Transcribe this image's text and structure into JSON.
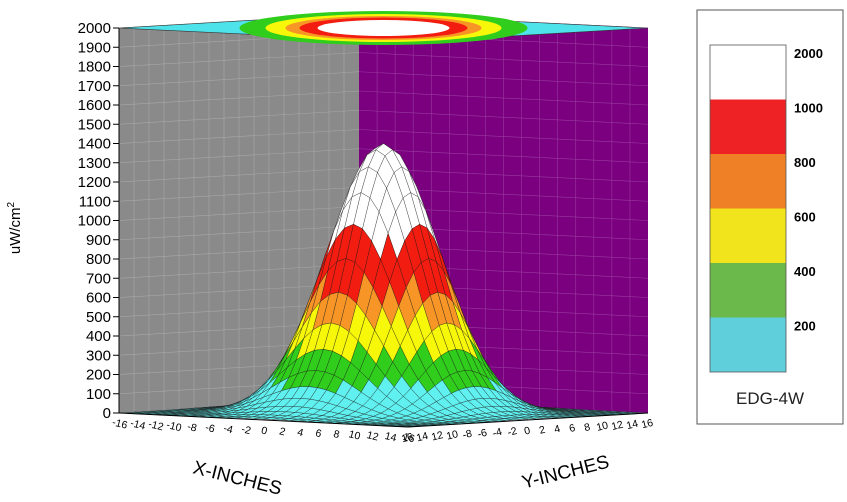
{
  "chart_data": {
    "type": "surface",
    "title": "",
    "xlabel": "X-INCHES",
    "ylabel": "Y-INCHES",
    "zlabel": "uW/cm",
    "zlabel_superscript": "2",
    "x_ticks": [
      "-16",
      "-14",
      "-12",
      "-10",
      "-8",
      "-6",
      "-4",
      "-2",
      "0",
      "2",
      "4",
      "6",
      "8",
      "10",
      "12",
      "14",
      "16"
    ],
    "y_ticks": [
      "16",
      "14",
      "12",
      "10",
      "-8",
      "-6",
      "-4",
      "-2",
      "0",
      "2",
      "4",
      "6",
      "8",
      "10",
      "12",
      "14",
      "16"
    ],
    "z_ticks": [
      "0",
      "100",
      "200",
      "300",
      "400",
      "500",
      "600",
      "700",
      "800",
      "900",
      "1000",
      "1100",
      "1200",
      "1300",
      "1400",
      "1500",
      "1600",
      "1700",
      "1800",
      "1900",
      "2000"
    ],
    "xlim": [
      -16,
      16
    ],
    "ylim": [
      -16,
      16
    ],
    "zlim": [
      0,
      2000
    ],
    "peak_value": 1400,
    "color_bands": [
      {
        "max_label": "200",
        "color": "#5fcfdc"
      },
      {
        "max_label": "400",
        "color": "#6ab94a"
      },
      {
        "max_label": "600",
        "color": "#f2e41c"
      },
      {
        "max_label": "800",
        "color": "#f08026"
      },
      {
        "max_label": "1000",
        "color": "#ee2225"
      },
      {
        "max_label": "2000",
        "color": "#ffffff"
      }
    ],
    "surface_band_colors": [
      "#5ff0ef",
      "#31cd1c",
      "#f7f70a",
      "#f79527",
      "#f21d10",
      "#ffffff"
    ],
    "surface_band_edges": [
      0,
      170,
      340,
      510,
      680,
      910,
      1400
    ],
    "wall_colors": {
      "left": "#8a8a8a",
      "right": "#7a007f",
      "top": "#4ee3eb"
    },
    "legend": {
      "name": "EDG-4W",
      "tick_labels": [
        "2000",
        "1000",
        "800",
        "600",
        "400",
        "200"
      ]
    }
  }
}
